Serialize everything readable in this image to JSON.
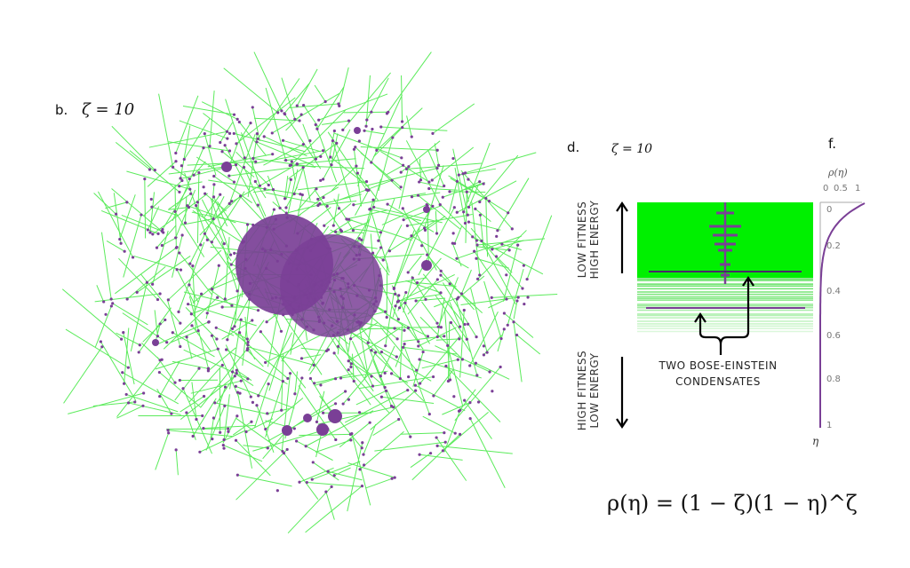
{
  "panel_b": {
    "label": "b.",
    "zeta_text": "ζ = 10"
  },
  "panel_d": {
    "label": "d.",
    "zeta_text": "ζ = 10",
    "top_label_line1": "LOW FITNESS",
    "top_label_line2": "HIGH ENERGY",
    "bottom_label_line1": "HIGH FITNESS",
    "bottom_label_line2": "LOW ENERGY",
    "annotation_line1": "TWO BOSE-EINSTEIN",
    "annotation_line2": "CONDENSATES"
  },
  "panel_f": {
    "label": "f.",
    "x_axis_label": "ρ(η)",
    "x_ticks": [
      "0",
      "0.5",
      "1"
    ],
    "y_axis_label": "η",
    "y_ticks": [
      "0",
      "0.2",
      "0.4",
      "0.6",
      "0.8",
      "1"
    ]
  },
  "formula": "ρ(η) = (1 − ζ)(1 − η)^ζ",
  "colors": {
    "edge": "#3fe83f",
    "node": "#7a3f96",
    "axis": "#888888"
  },
  "chart_data": {
    "type": "line",
    "title": "ρ(η)",
    "xlabel": "ρ(η)",
    "ylabel": "η",
    "xlim": [
      0,
      1
    ],
    "ylim": [
      0,
      1
    ],
    "zeta": 10,
    "description_of_series": "density decaying from 1 at η=0 toward 0 by η≈0.35"
  }
}
